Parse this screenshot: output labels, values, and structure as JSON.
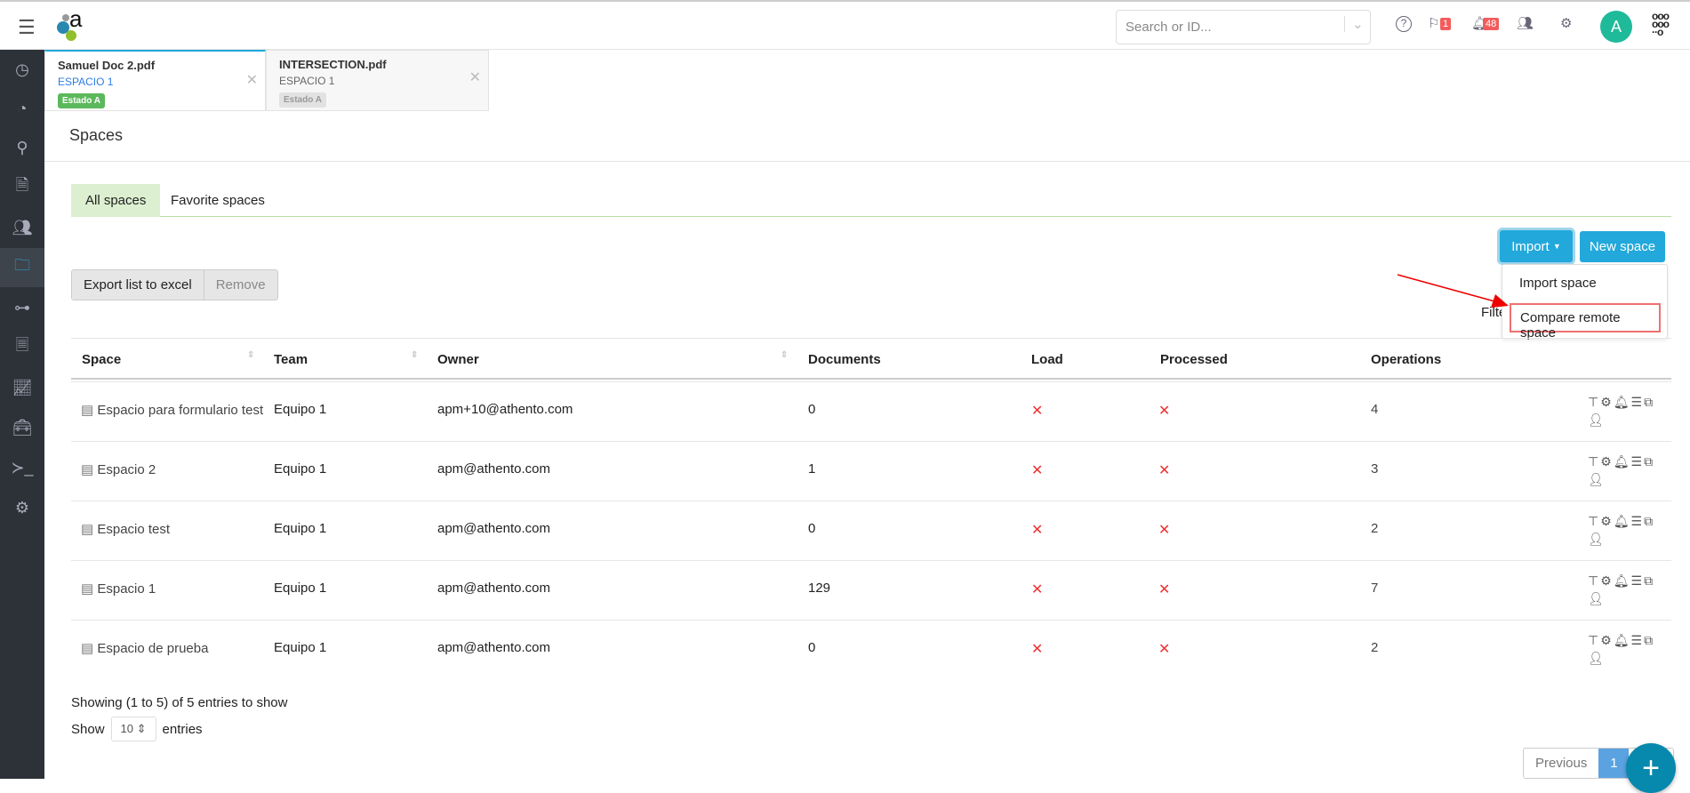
{
  "header": {
    "search_placeholder": "Search or ID...",
    "flag_count": "1",
    "notif_count": "48",
    "avatar": "A"
  },
  "doc_tabs": [
    {
      "title": "Samuel Doc 2.pdf",
      "space": "ESPACIO 1",
      "state": "Estado A",
      "active": true
    },
    {
      "title": "INTERSECTION.pdf",
      "space": "ESPACIO 1",
      "state": "Estado A",
      "active": false
    }
  ],
  "page_title": "Spaces",
  "tabs": [
    "All spaces",
    "Favorite spaces"
  ],
  "buttons": {
    "import": "Import",
    "new_space": "New space",
    "export": "Export list to excel",
    "remove": "Remove"
  },
  "import_menu": [
    "Import space",
    "Compare remote space"
  ],
  "filter_label": "Filter",
  "table": {
    "columns": [
      "Space",
      "Team",
      "Owner",
      "Documents",
      "Load",
      "Processed",
      "Operations"
    ],
    "rows": [
      {
        "space": "Espacio para formulario test",
        "team": "Equipo 1",
        "owner": "apm+10@athento.com",
        "documents": "0",
        "load": "✕",
        "processed": "✕",
        "operations": "4"
      },
      {
        "space": "Espacio 2",
        "team": "Equipo 1",
        "owner": "apm@athento.com",
        "documents": "1",
        "load": "✕",
        "processed": "✕",
        "operations": "3"
      },
      {
        "space": "Espacio test",
        "team": "Equipo 1",
        "owner": "apm@athento.com",
        "documents": "0",
        "load": "✕",
        "processed": "✕",
        "operations": "2"
      },
      {
        "space": "Espacio 1",
        "team": "Equipo 1",
        "owner": "apm@athento.com",
        "documents": "129",
        "load": "✕",
        "processed": "✕",
        "operations": "7"
      },
      {
        "space": "Espacio de prueba",
        "team": "Equipo 1",
        "owner": "apm@athento.com",
        "documents": "0",
        "load": "✕",
        "processed": "✕",
        "operations": "2"
      }
    ]
  },
  "footer": {
    "showing": "Showing (1 to 5) of 5 entries to show",
    "show": "Show",
    "page_size": "10",
    "entries": "entries",
    "previous": "Previous",
    "page": "1",
    "fab": "+"
  }
}
